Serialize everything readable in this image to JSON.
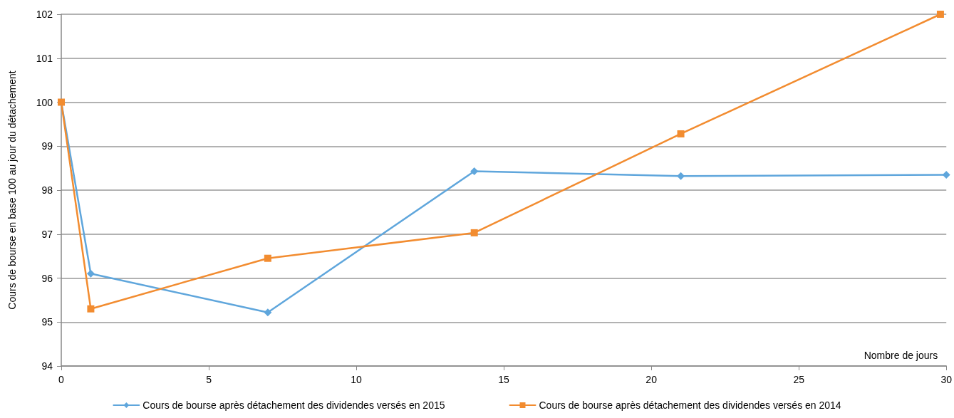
{
  "chart_data": {
    "type": "line",
    "xlabel": "Nombre de jours",
    "ylabel": "Cours de bourse en base 100 au jour du détachement",
    "series": [
      {
        "name": "Cours de bourse après détachement des dividendes versés en 2015",
        "color": "#5fa6dc",
        "marker": "diamond",
        "x": [
          0,
          1,
          7,
          14,
          21,
          30
        ],
        "values": [
          100,
          96.1,
          95.22,
          98.43,
          98.32,
          98.35
        ]
      },
      {
        "name": "Cours de bourse après détachement des dividendes versés en 2014",
        "color": "#f28c30",
        "marker": "square",
        "x": [
          0,
          1,
          7,
          14,
          21,
          29.8
        ],
        "values": [
          100,
          95.3,
          96.45,
          97.03,
          99.28,
          102
        ]
      }
    ],
    "xlim": [
      0,
      30
    ],
    "xticks": [
      0,
      5,
      10,
      15,
      20,
      25,
      30
    ],
    "ylim": [
      94,
      102
    ],
    "yticks": [
      94,
      95,
      96,
      97,
      98,
      99,
      100,
      101,
      102
    ],
    "grid": "y",
    "legend": "bottom"
  }
}
